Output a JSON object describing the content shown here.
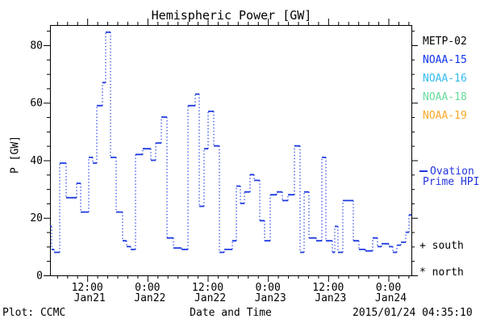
{
  "title": "Hemispheric Power [GW]",
  "footer": {
    "plot_credit": "Plot: CCMC",
    "xaxis_title": "Date and Time",
    "timestamp": "2015/01/24 04:35:10"
  },
  "legend": {
    "satellites": [
      {
        "label": "METP-02",
        "color": "#000000"
      },
      {
        "label": "NOAA-15",
        "color": "#1133ee"
      },
      {
        "label": "NOAA-16",
        "color": "#33bbee"
      },
      {
        "label": "NOAA-18",
        "color": "#66dd99"
      },
      {
        "label": "NOAA-19",
        "color": "#f9a825"
      },
      {
        "label": "METP-02",
        "comment": ""
      }
    ],
    "line_entry": {
      "label_line1": "Ovation",
      "label_line2": "Prime HPI",
      "color": "#2233dd"
    },
    "marker_entries": [
      {
        "symbol": "+",
        "label": "south"
      },
      {
        "symbol": "*",
        "label": "north"
      }
    ]
  },
  "chart_data": {
    "type": "line",
    "subtype": "step-histogram, solid horizontal segments with dotted vertical connectors",
    "title": "Hemispheric Power [GW]",
    "xlabel": "Date and Time",
    "ylabel": "P [GW]",
    "series_name": "Ovation Prime HPI",
    "line_color": "#1f3be0",
    "grid": false,
    "legend_position": "right outside",
    "ylim": [
      0,
      87
    ],
    "yticks_major": [
      0,
      20,
      40,
      60,
      80
    ],
    "ytick_minor_step": 5,
    "x_start_label": "2015/01/21 ~04:35",
    "x_end_label": "2015/01/24 ~04:35",
    "x_hours_span": 72,
    "xticks": [
      {
        "hour": 7.42,
        "time": "12:00",
        "date": "Jan21"
      },
      {
        "hour": 19.42,
        "time": "0:00",
        "date": "Jan22"
      },
      {
        "hour": 31.42,
        "time": "12:00",
        "date": "Jan22"
      },
      {
        "hour": 43.42,
        "time": "0:00",
        "date": "Jan23"
      },
      {
        "hour": 55.42,
        "time": "12:00",
        "date": "Jan23"
      },
      {
        "hour": 67.42,
        "time": "0:00",
        "date": "Jan24"
      }
    ],
    "xtick_minor_first_hour": 1.42,
    "xtick_minor_step_hours": 2,
    "steps_hour_vs_GW": [
      [
        0,
        17
      ],
      [
        0.32,
        9
      ],
      [
        0.8,
        8
      ],
      [
        1.93,
        39
      ],
      [
        3.21,
        27
      ],
      [
        5.3,
        32
      ],
      [
        6.11,
        22
      ],
      [
        7.71,
        41
      ],
      [
        8.52,
        39
      ],
      [
        9.32,
        59
      ],
      [
        10.45,
        67
      ],
      [
        11.09,
        84.5
      ],
      [
        12.05,
        41
      ],
      [
        13.18,
        22
      ],
      [
        14.46,
        12
      ],
      [
        15.27,
        10
      ],
      [
        16.07,
        9
      ],
      [
        17.04,
        42
      ],
      [
        18.48,
        44
      ],
      [
        20.09,
        40
      ],
      [
        21.05,
        46
      ],
      [
        22.18,
        55
      ],
      [
        23.3,
        13
      ],
      [
        24.59,
        9.5
      ],
      [
        26.2,
        9
      ],
      [
        27.48,
        59
      ],
      [
        28.93,
        63
      ],
      [
        29.73,
        24
      ],
      [
        30.7,
        44
      ],
      [
        31.5,
        57
      ],
      [
        32.63,
        45
      ],
      [
        33.75,
        8
      ],
      [
        34.71,
        9
      ],
      [
        36.32,
        12
      ],
      [
        37.13,
        31
      ],
      [
        37.93,
        25
      ],
      [
        38.73,
        29
      ],
      [
        39.86,
        35
      ],
      [
        40.66,
        33
      ],
      [
        41.79,
        19
      ],
      [
        42.75,
        12
      ],
      [
        43.88,
        28
      ],
      [
        45.16,
        29
      ],
      [
        46.29,
        26
      ],
      [
        47.41,
        28
      ],
      [
        48.7,
        45
      ],
      [
        49.82,
        8
      ],
      [
        50.63,
        29
      ],
      [
        51.59,
        13
      ],
      [
        53.04,
        12
      ],
      [
        54.16,
        41
      ],
      [
        54.96,
        12
      ],
      [
        56.25,
        8
      ],
      [
        56.73,
        17
      ],
      [
        57.38,
        8
      ],
      [
        58.34,
        26
      ],
      [
        60.43,
        12
      ],
      [
        61.55,
        9
      ],
      [
        62.84,
        8.5
      ],
      [
        64.29,
        13
      ],
      [
        65.25,
        10
      ],
      [
        66.05,
        11
      ],
      [
        67.5,
        10
      ],
      [
        68.3,
        8
      ],
      [
        69.11,
        10.5
      ],
      [
        69.91,
        11.5
      ],
      [
        70.88,
        15
      ],
      [
        71.52,
        21
      ]
    ],
    "end_hour": 72
  }
}
